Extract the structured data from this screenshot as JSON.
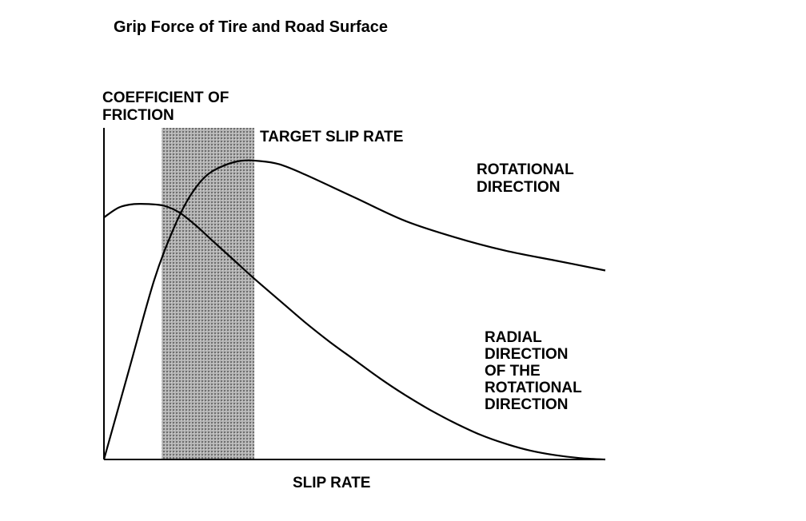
{
  "chart_data": {
    "type": "line",
    "title": "Grip Force of Tire and Road Surface",
    "ylabel_lines": [
      "COEFFICIENT OF",
      "FRICTION"
    ],
    "xlabel": "SLIP RATE",
    "region": {
      "label": "TARGET SLIP RATE",
      "x_range": [
        0.115,
        0.3
      ],
      "fill": "#9a9a9a"
    },
    "xlim": [
      0,
      1
    ],
    "ylim": [
      0,
      1
    ],
    "grid": false,
    "series": [
      {
        "name": "ROTATIONAL DIRECTION",
        "label_lines": [
          "ROTATIONAL",
          "DIRECTION"
        ],
        "color": "#000000",
        "x": [
          0,
          0.05,
          0.1,
          0.14,
          0.17,
          0.2,
          0.23,
          0.27,
          0.31,
          0.35,
          0.4,
          0.5,
          0.6,
          0.7,
          0.8,
          0.9,
          1.0
        ],
        "y": [
          0,
          0.27,
          0.54,
          0.7,
          0.79,
          0.85,
          0.88,
          0.9,
          0.9,
          0.89,
          0.86,
          0.79,
          0.72,
          0.67,
          0.63,
          0.6,
          0.57
        ]
      },
      {
        "name": "RADIAL DIRECTION OF THE ROTATIONAL DIRECTION",
        "label_lines": [
          "RADIAL",
          "DIRECTION",
          "OF THE",
          "ROTATIONAL",
          "DIRECTION"
        ],
        "color": "#000000",
        "x": [
          0,
          0.03,
          0.06,
          0.09,
          0.12,
          0.15,
          0.18,
          0.22,
          0.26,
          0.3,
          0.35,
          0.4,
          0.45,
          0.5,
          0.55,
          0.6,
          0.65,
          0.7,
          0.75,
          0.8,
          0.85,
          0.9,
          0.95,
          1.0
        ],
        "y": [
          0.73,
          0.76,
          0.77,
          0.77,
          0.765,
          0.745,
          0.71,
          0.655,
          0.6,
          0.545,
          0.48,
          0.415,
          0.355,
          0.3,
          0.245,
          0.195,
          0.15,
          0.11,
          0.075,
          0.048,
          0.027,
          0.013,
          0.004,
          0
        ]
      }
    ]
  }
}
